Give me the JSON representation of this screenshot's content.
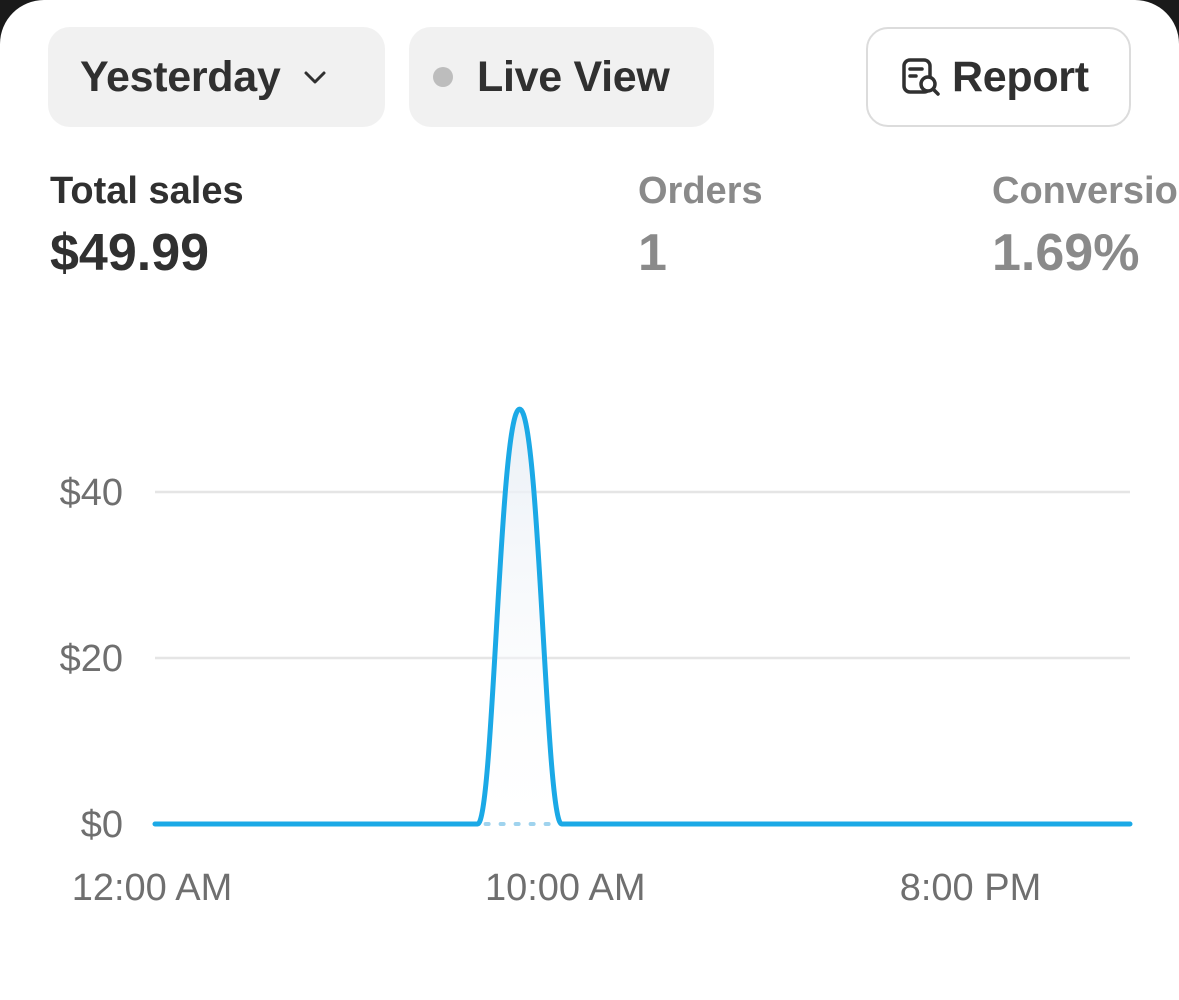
{
  "toolbar": {
    "date_range_label": "Yesterday",
    "live_view_label": "Live View",
    "report_label": "Report"
  },
  "metrics": {
    "total_sales": {
      "label": "Total sales",
      "value": "$49.99"
    },
    "orders": {
      "label": "Orders",
      "value": "1"
    },
    "conversion": {
      "label": "Conversion rate",
      "value": "1.69%"
    }
  },
  "colors": {
    "line": "#1ba9e6",
    "grid": "#e5e5e5",
    "active_text": "#303030",
    "inactive_text": "#8a8a8a"
  },
  "icons": [
    "chevron-down-icon",
    "status-dot-icon",
    "report-search-icon"
  ],
  "chart_data": {
    "type": "line",
    "x_tick_labels": [
      "12:00 AM",
      "10:00 AM",
      "8:00 PM"
    ],
    "y_tick_labels": [
      "$0",
      "$20",
      "$40"
    ],
    "y_ticks": [
      0,
      20,
      40
    ],
    "ylim": [
      0,
      50
    ],
    "x": [
      0,
      1,
      2,
      3,
      4,
      5,
      6,
      7,
      8,
      9,
      10,
      11,
      12,
      13,
      14,
      15,
      16,
      17,
      18,
      19,
      20,
      21,
      22,
      23
    ],
    "series": [
      {
        "values": [
          0,
          0,
          0,
          0,
          0,
          0,
          0,
          0,
          0,
          49.99,
          0,
          0,
          0,
          0,
          0,
          0,
          0,
          0,
          0,
          0,
          0,
          0,
          0,
          0
        ]
      }
    ],
    "grid": true,
    "legend": "none"
  }
}
